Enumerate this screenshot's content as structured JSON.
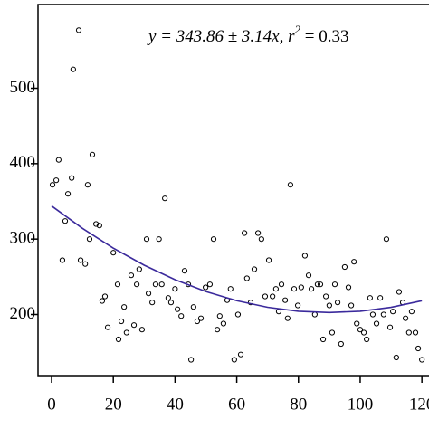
{
  "chart_data": {
    "type": "scatter",
    "annotation": "y = 343.86 ± 3.14x, r",
    "annotation_exponent": "2",
    "annotation_tail": " = 0.33",
    "x": [
      0.3,
      1.5,
      2.3,
      3.5,
      4.4,
      5.3,
      6.5,
      7,
      8.8,
      9.4,
      10.9,
      11.7,
      12.3,
      13.2,
      14.4,
      15.5,
      16.4,
      17.3,
      18.2,
      20,
      21.4,
      21.7,
      22.6,
      23.5,
      24.3,
      25.8,
      26.7,
      27.6,
      28.4,
      29.3,
      30.8,
      31.4,
      32.6,
      33.7,
      34.8,
      35.7,
      36.7,
      37.8,
      38.7,
      40,
      40.8,
      42,
      43.1,
      44.3,
      45.2,
      46,
      47.2,
      48.4,
      49.9,
      51.3,
      52.5,
      53.7,
      54.5,
      55.7,
      56.9,
      58,
      59.2,
      60.4,
      61.3,
      62.5,
      63.3,
      64.5,
      65.7,
      66.9,
      68,
      69.2,
      70.4,
      71.6,
      72.7,
      73.6,
      74.5,
      75.7,
      76.5,
      77.4,
      78.6,
      79.8,
      80.9,
      82.1,
      83.3,
      84.2,
      85.3,
      86.2,
      87.1,
      88,
      88.9,
      90,
      90.9,
      91.8,
      92.7,
      93.8,
      95,
      96.2,
      97.1,
      98,
      98.9,
      100,
      101.2,
      102.1,
      103.2,
      104.1,
      105.3,
      106.5,
      107.6,
      108.5,
      109.7,
      110.6,
      111.7,
      112.6,
      113.8,
      114.7,
      115.8,
      116.7,
      117.9,
      118.8,
      120
    ],
    "values": [
      372,
      378,
      405,
      272,
      324,
      360,
      381,
      525,
      577,
      272,
      267,
      372,
      300,
      412,
      320,
      318,
      218,
      224,
      183,
      282,
      240,
      167,
      191,
      210,
      176,
      252,
      186,
      240,
      260,
      180,
      300,
      228,
      216,
      240,
      300,
      240,
      354,
      222,
      216,
      234,
      207,
      198,
      258,
      240,
      140,
      210,
      191,
      195,
      236,
      240,
      300,
      180,
      198,
      188,
      219,
      234,
      140,
      200,
      147,
      308,
      248,
      216,
      260,
      308,
      300,
      224,
      272,
      224,
      234,
      204,
      240,
      219,
      195,
      372,
      234,
      212,
      236,
      278,
      252,
      234,
      200,
      240,
      240,
      167,
      224,
      212,
      176,
      240,
      216,
      161,
      263,
      236,
      212,
      270,
      188,
      180,
      176,
      167,
      222,
      200,
      188,
      222,
      200,
      300,
      183,
      204,
      143,
      230,
      216,
      195,
      176,
      204,
      176,
      155,
      140
    ],
    "color": "#000000",
    "fit_x": [
      0,
      10,
      20,
      30,
      40,
      50,
      60,
      70,
      80,
      90,
      100,
      110,
      120
    ],
    "fit_values": [
      343.9,
      314.2,
      288.0,
      265.4,
      246.2,
      230.5,
      218.3,
      209.6,
      204.3,
      202.6,
      204.3,
      209.5,
      218.2
    ],
    "fit_color": "#3b2a9c",
    "xlim": [
      -4.4,
      122.3
    ],
    "ylim": [
      119,
      611
    ],
    "xticks": [
      0,
      20,
      40,
      60,
      80,
      100,
      120
    ],
    "yticks": [
      200,
      300,
      400,
      500
    ]
  }
}
